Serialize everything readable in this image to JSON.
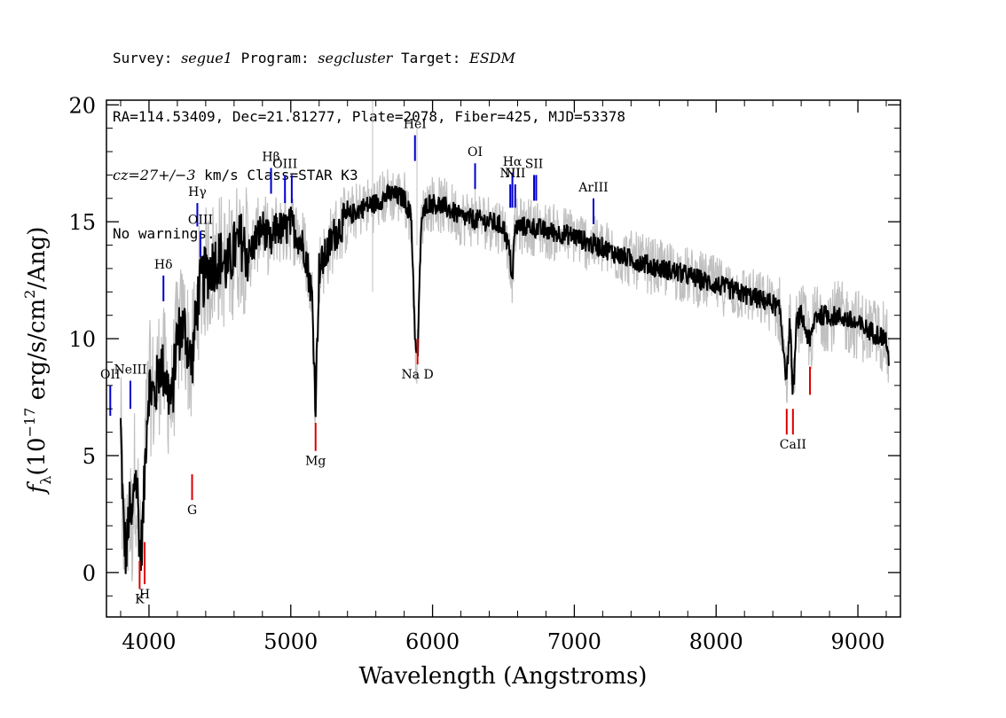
{
  "header": {
    "line1": {
      "survey_label": "Survey: ",
      "survey": "segue1",
      "program_label": " Program: ",
      "program": "segcluster",
      "target_label": " Target: ",
      "target": "ESDM"
    },
    "line2": "RA=114.53409, Dec=21.81277, Plate=2078, Fiber=425, MJD=53378",
    "line3": {
      "cz_label": "cz",
      "cz_value": "=27+/−3",
      "rest": " km/s Class=STAR K3"
    },
    "line4": "No warnings."
  },
  "colors": {
    "flux": "#000000",
    "error": "#c0c0c0",
    "emission": "#0000cc",
    "absorption": "#dd0000"
  },
  "chart_data": {
    "type": "line",
    "xlabel": "Wavelength (Angstroms)",
    "ylabel": "f_λ (10^-17 erg/s/cm^2/Ang)",
    "ylabel_parts": {
      "f": "f",
      "sub": "λ",
      "paren_open": "(10",
      "exp": "−17",
      "mid": " erg/s/cm",
      "exp2": "2",
      "tail": "/Ang)"
    },
    "xlim": [
      3700,
      9300
    ],
    "ylim": [
      -1.9,
      20.2
    ],
    "x_ticks": [
      4000,
      5000,
      6000,
      7000,
      8000,
      9000
    ],
    "y_ticks": [
      0,
      5,
      10,
      15,
      20
    ],
    "grid": false,
    "series": [
      {
        "role": "flux",
        "x": [
          3800,
          3820,
          3840,
          3860,
          3880,
          3900,
          3920,
          3940,
          3960,
          3980,
          4000,
          4040,
          4080,
          4120,
          4160,
          4200,
          4250,
          4300,
          4350,
          4400,
          4450,
          4500,
          4550,
          4600,
          4650,
          4700,
          4750,
          4800,
          4860,
          4900,
          4950,
          5000,
          5050,
          5100,
          5150,
          5175,
          5200,
          5250,
          5300,
          5400,
          5500,
          5600,
          5700,
          5800,
          5850,
          5880,
          5895,
          5920,
          5960,
          6000,
          6100,
          6200,
          6300,
          6400,
          6500,
          6540,
          6563,
          6580,
          6600,
          6700,
          6800,
          6900,
          7000,
          7100,
          7200,
          7300,
          7400,
          7500,
          7600,
          7700,
          7800,
          7900,
          8000,
          8100,
          8200,
          8300,
          8400,
          8450,
          8498,
          8520,
          8542,
          8570,
          8600,
          8662,
          8700,
          8800,
          8900,
          9000,
          9100,
          9200,
          9220
        ],
        "y": [
          6.2,
          2.0,
          0.6,
          2.8,
          1.8,
          4.5,
          3.2,
          0.5,
          2.5,
          6.0,
          8.0,
          7.5,
          9.0,
          8.2,
          7.2,
          10.2,
          10.5,
          8.8,
          12.0,
          12.8,
          13.2,
          13.5,
          13.0,
          13.8,
          14.2,
          13.5,
          14.2,
          14.8,
          14.0,
          14.8,
          14.6,
          14.9,
          14.4,
          13.8,
          11.8,
          7.2,
          13.0,
          13.6,
          14.4,
          15.2,
          15.6,
          15.8,
          16.2,
          16.0,
          15.2,
          9.5,
          9.2,
          15.0,
          15.8,
          15.8,
          15.6,
          15.2,
          15.1,
          15.0,
          14.8,
          13.8,
          12.6,
          14.6,
          14.8,
          14.8,
          14.6,
          14.5,
          14.4,
          14.1,
          13.9,
          13.6,
          13.4,
          13.2,
          13.0,
          12.9,
          12.7,
          12.5,
          12.3,
          12.1,
          11.9,
          11.7,
          11.5,
          11.2,
          8.2,
          10.8,
          7.6,
          10.8,
          11.0,
          9.8,
          11.0,
          11.0,
          10.9,
          10.6,
          10.3,
          10.0,
          8.7
        ]
      }
    ],
    "line_markers": {
      "emission": [
        {
          "label": "OII",
          "x": 3727,
          "y0": 6.7,
          "y1": 8.0
        },
        {
          "label": "NeIII",
          "x": 3869,
          "y0": 7.0,
          "y1": 8.2
        },
        {
          "label": "Hδ",
          "x": 4102,
          "y0": 11.6,
          "y1": 12.7
        },
        {
          "label": "Hγ",
          "x": 4341,
          "y0": 14.8,
          "y1": 15.8
        },
        {
          "label": "OIII",
          "x": 4363,
          "y0": 13.5,
          "y1": 14.6
        },
        {
          "label": "Hβ",
          "x": 4861,
          "y0": 16.2,
          "y1": 17.3
        },
        {
          "label": "OIII",
          "x": 4959,
          "y0": 15.8,
          "y1": 17.0
        },
        {
          "label": "",
          "x": 5007,
          "y0": 15.8,
          "y1": 17.0
        },
        {
          "label": "HeI",
          "x": 5876,
          "y0": 17.6,
          "y1": 18.7
        },
        {
          "label": "OI",
          "x": 6300,
          "y0": 16.4,
          "y1": 17.5
        },
        {
          "label": "NII",
          "x": 6548,
          "y0": 15.6,
          "y1": 16.6
        },
        {
          "label": "Hα",
          "x": 6563,
          "y0": 15.6,
          "y1": 17.1
        },
        {
          "label": "NII",
          "x": 6583,
          "y0": 15.6,
          "y1": 16.6
        },
        {
          "label": "SII",
          "x": 6716,
          "y0": 15.9,
          "y1": 17.0
        },
        {
          "label": "",
          "x": 6731,
          "y0": 15.9,
          "y1": 17.0
        },
        {
          "label": "ArIII",
          "x": 7135,
          "y0": 14.9,
          "y1": 16.0
        }
      ],
      "absorption": [
        {
          "label": "K",
          "x": 3934,
          "y0": -0.7,
          "y1": 0.5
        },
        {
          "label": "H",
          "x": 3969,
          "y0": -0.5,
          "y1": 1.3
        },
        {
          "label": "G",
          "x": 4304,
          "y0": 3.1,
          "y1": 4.2
        },
        {
          "label": "Mg",
          "x": 5175,
          "y0": 5.2,
          "y1": 6.4
        },
        {
          "label": "Na D",
          "x": 5894,
          "y0": 8.9,
          "y1": 10.0
        },
        {
          "label": "",
          "x": 8498,
          "y0": 5.9,
          "y1": 7.0
        },
        {
          "label": "CaII",
          "x": 8542,
          "y0": 5.9,
          "y1": 7.0
        },
        {
          "label": "",
          "x": 8662,
          "y0": 7.6,
          "y1": 8.8
        }
      ]
    }
  }
}
